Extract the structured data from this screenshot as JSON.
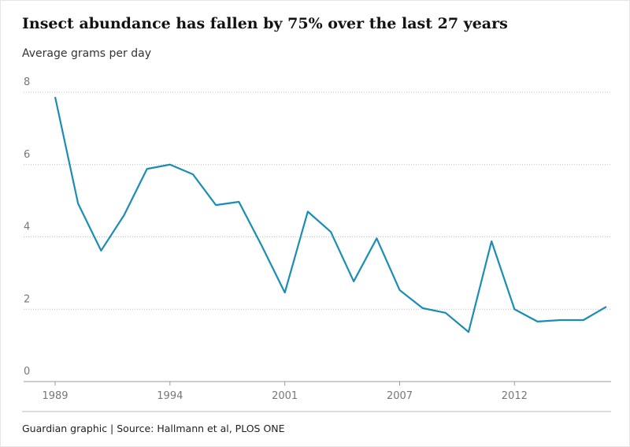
{
  "chart_data": {
    "type": "line",
    "title": "Insect abundance has fallen by 75% over the last 27 years",
    "y_label": "Average grams per day",
    "source": "Guardian graphic | Source: Hallmann et al, PLOS ONE",
    "categories": [
      "1989",
      null,
      null,
      null,
      null,
      "1994",
      null,
      null,
      null,
      null,
      "2001",
      null,
      null,
      null,
      null,
      "2007",
      null,
      null,
      null,
      null,
      "2012",
      null,
      null,
      null,
      null
    ],
    "series": [
      {
        "name": "Average grams per day",
        "color": "#1b8db4",
        "values": [
          7.87,
          4.92,
          3.62,
          4.6,
          5.88,
          6.0,
          5.73,
          4.88,
          4.97,
          3.75,
          2.46,
          4.7,
          4.14,
          2.77,
          3.96,
          2.53,
          2.03,
          1.9,
          1.37,
          3.88,
          2.0,
          1.66,
          1.7,
          1.7,
          2.07
        ]
      }
    ],
    "ylim": [
      0,
      8
    ],
    "yticks": [
      0,
      2,
      4,
      6,
      8
    ],
    "grid": true
  }
}
